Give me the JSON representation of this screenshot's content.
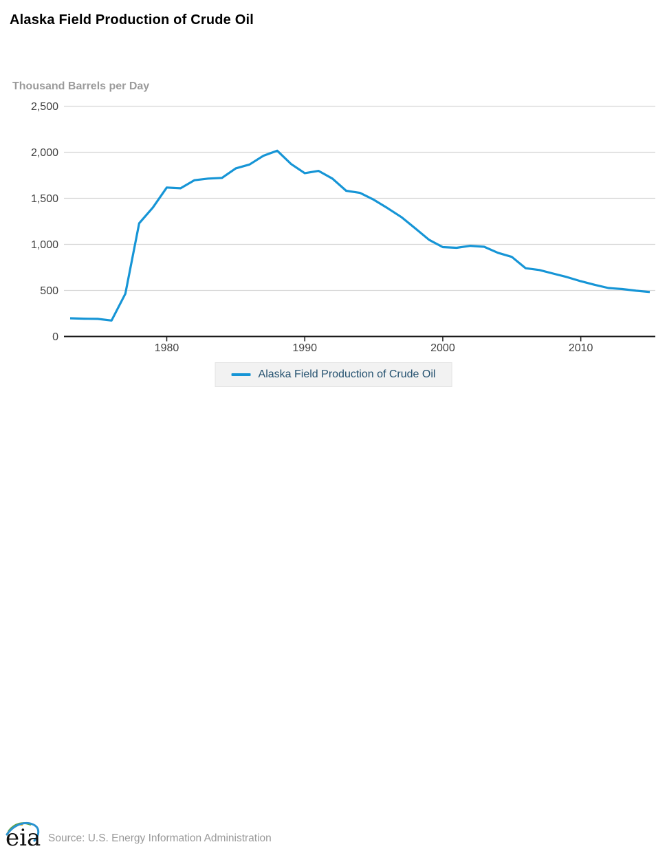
{
  "page": {
    "title": "Alaska Field Production of Crude Oil",
    "unit_label": "Thousand Barrels per Day"
  },
  "legend": {
    "label": "Alaska Field Production of Crude Oil"
  },
  "footer": {
    "logo_text": "eia",
    "source_text": "Source: U.S. Energy Information Administration"
  },
  "colors": {
    "line": "#1695d6",
    "grid": "#d6d6d6",
    "axis": "#1a1a1a",
    "tick_label": "#404040",
    "title_text": "#000000",
    "unit_label": "#9b9b9b",
    "legend_text": "#24516f",
    "legend_bg": "#f2f2f2",
    "legend_border": "#e4e4e4",
    "source_text": "#999999",
    "logo_text": "#111111",
    "logo_yellow": "#f0b32c",
    "logo_green": "#66a63a",
    "logo_blue": "#2a93d0"
  },
  "chart_data": {
    "type": "line",
    "title": "Alaska Field Production of Crude Oil",
    "xlabel": "",
    "ylabel": "Thousand Barrels per Day",
    "ylim": [
      0,
      2500
    ],
    "yticks": [
      0,
      500,
      1000,
      1500,
      2000,
      2500
    ],
    "xticks": [
      1980,
      1990,
      2000,
      2010
    ],
    "grid": true,
    "legend_position": "bottom",
    "x": [
      1973,
      1974,
      1975,
      1976,
      1977,
      1978,
      1979,
      1980,
      1981,
      1982,
      1983,
      1984,
      1985,
      1986,
      1987,
      1988,
      1989,
      1990,
      1991,
      1992,
      1993,
      1994,
      1995,
      1996,
      1997,
      1998,
      1999,
      2000,
      2001,
      2002,
      2003,
      2004,
      2005,
      2006,
      2007,
      2008,
      2009,
      2010,
      2011,
      2012,
      2013,
      2014,
      2015
    ],
    "series": [
      {
        "name": "Alaska Field Production of Crude Oil",
        "values": [
          198,
          193,
          191,
          173,
          464,
          1229,
          1401,
          1617,
          1609,
          1696,
          1714,
          1722,
          1825,
          1867,
          1962,
          2017,
          1874,
          1773,
          1798,
          1714,
          1582,
          1559,
          1484,
          1393,
          1296,
          1175,
          1050,
          970,
          963,
          984,
          974,
          908,
          864,
          741,
          722,
          683,
          645,
          600,
          561,
          526,
          515,
          497,
          483
        ]
      }
    ]
  }
}
